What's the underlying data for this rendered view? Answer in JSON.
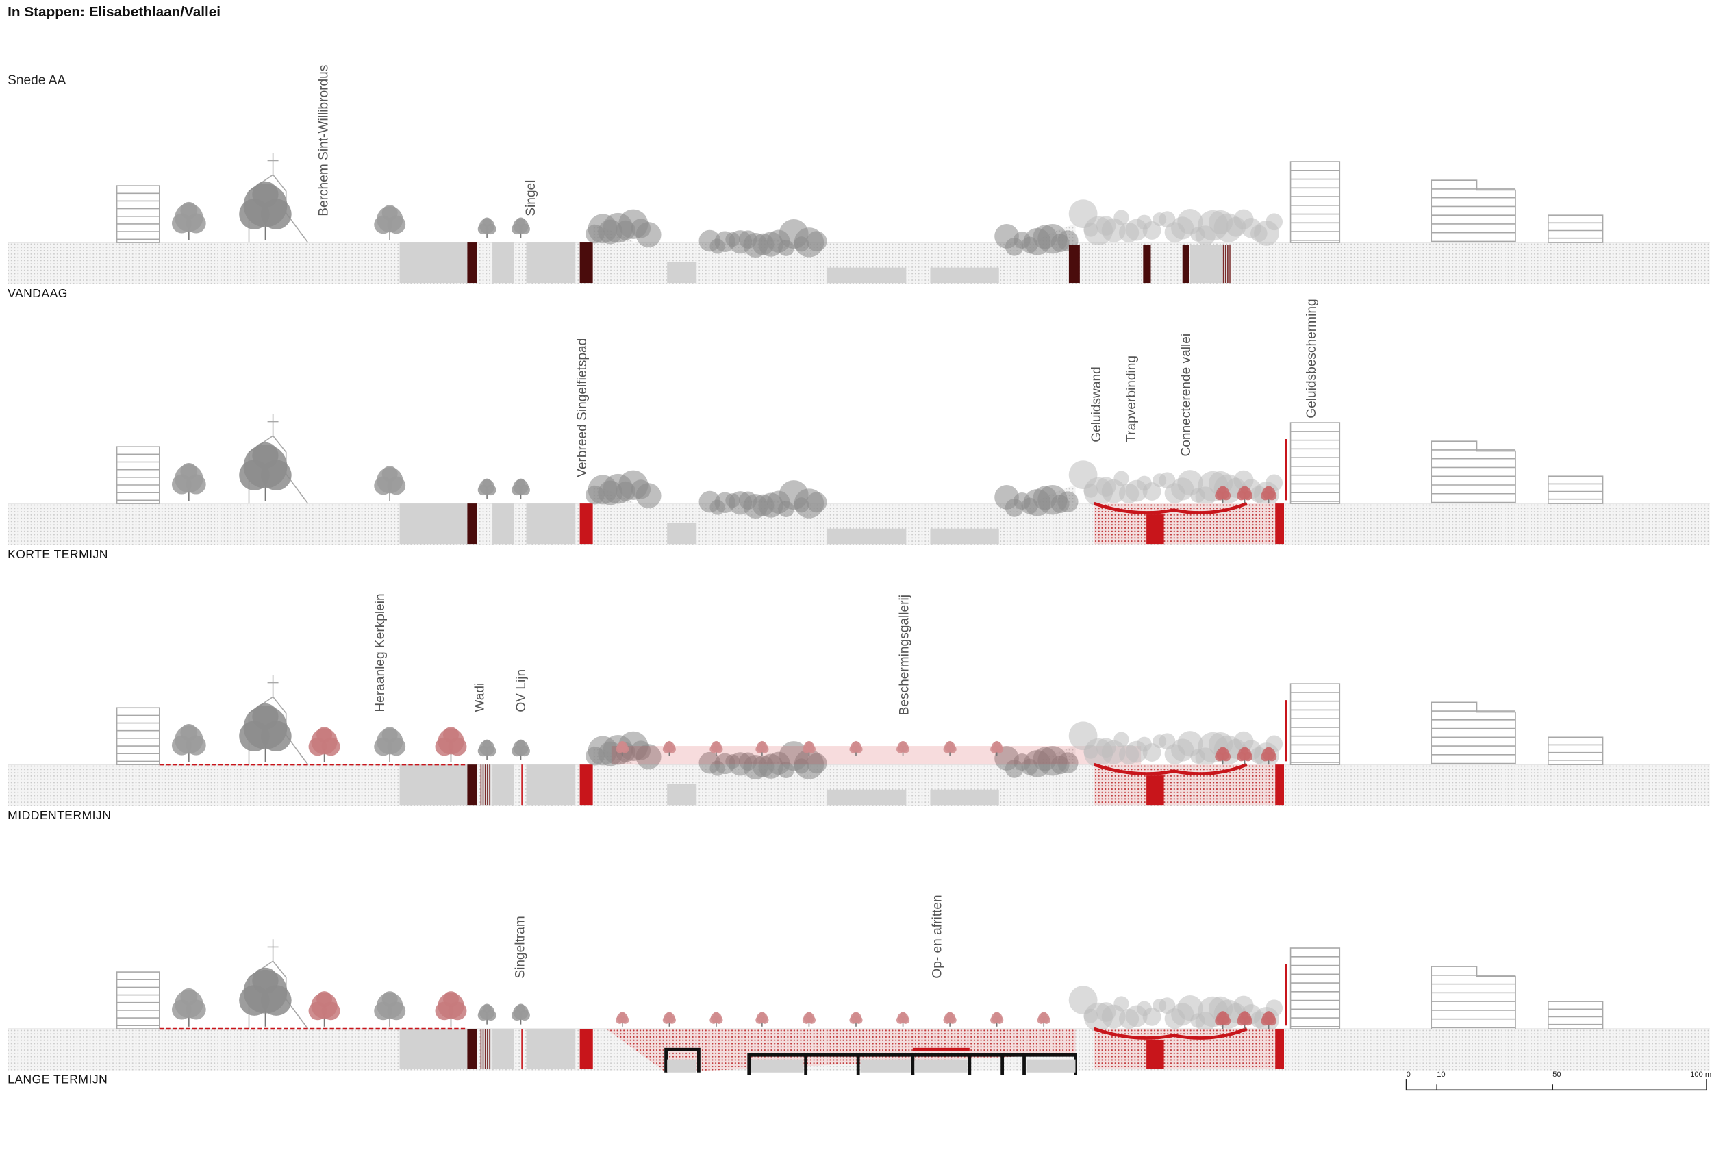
{
  "title": "In Stappen: Elisabethlaan/Vallei",
  "subtitle": "Snede AA",
  "sections": [
    {
      "label": "VANDAAG",
      "annotations": [
        "Berchem Sint-Willibrordus",
        "Singel"
      ]
    },
    {
      "label": "KORTE TERMIJN",
      "annotations": [
        "Verbreed Singelfietspad",
        "Geluidswand",
        "Trapverbinding",
        "Connecterende vallei",
        "Geluidsbescherming"
      ]
    },
    {
      "label": "MIDDENTERMIJN",
      "annotations": [
        "Heraanleg Kerkplein",
        "Wadi",
        "OV Lijn",
        "Beschermingsgallerij"
      ]
    },
    {
      "label": "LANGE TERMIJN",
      "annotations": [
        "Singeltram",
        "Op- en afritten"
      ]
    }
  ],
  "scale": {
    "labels": [
      "0",
      "10",
      "50",
      "100 m"
    ]
  }
}
